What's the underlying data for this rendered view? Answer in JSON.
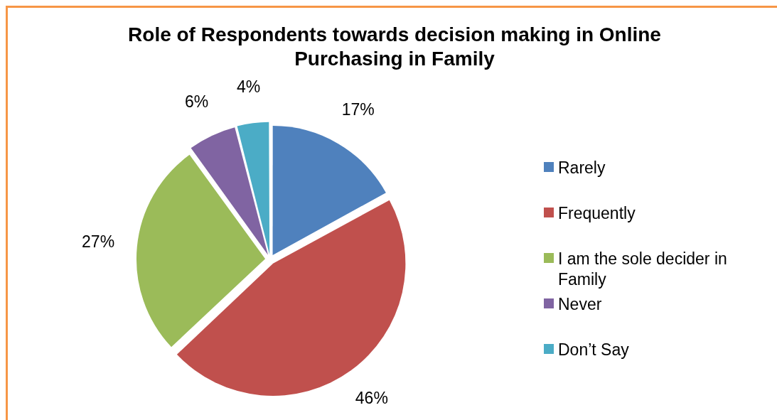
{
  "chart_data": {
    "type": "pie",
    "title": "Role of Respondents towards decision making in Online Purchasing in Family",
    "categories": [
      "Rarely",
      "Frequently",
      "I am the sole decider in Family",
      "Never",
      "Don’t Say"
    ],
    "values": [
      17,
      46,
      27,
      6,
      4
    ],
    "value_labels": [
      "17%",
      "46%",
      "27%",
      "6%",
      "4%"
    ],
    "colors": [
      "#4f81bd",
      "#c0504d",
      "#9bbb59",
      "#8064a2",
      "#4bacc6"
    ],
    "legend": "right"
  }
}
